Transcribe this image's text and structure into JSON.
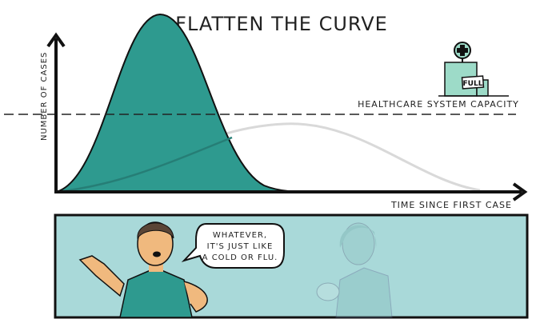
{
  "title": "FLATTEN THE CURVE",
  "y_axis_label": "NUMBER OF CASES",
  "x_axis_label": "TIME SINCE FIRST CASE",
  "capacity_label": "HEALTHCARE SYSTEM CAPACITY",
  "hospital_sign": "FULL",
  "speech_lines": [
    "WHATEVER,",
    "IT'S JUST LIKE",
    "A COLD OR FLU."
  ],
  "colors": {
    "peak_curve": "#2e9a8f",
    "flat_curve": "#d9d9d9",
    "panel_bg": "#a9d9d9",
    "hospital": "#9ddbc8"
  }
}
